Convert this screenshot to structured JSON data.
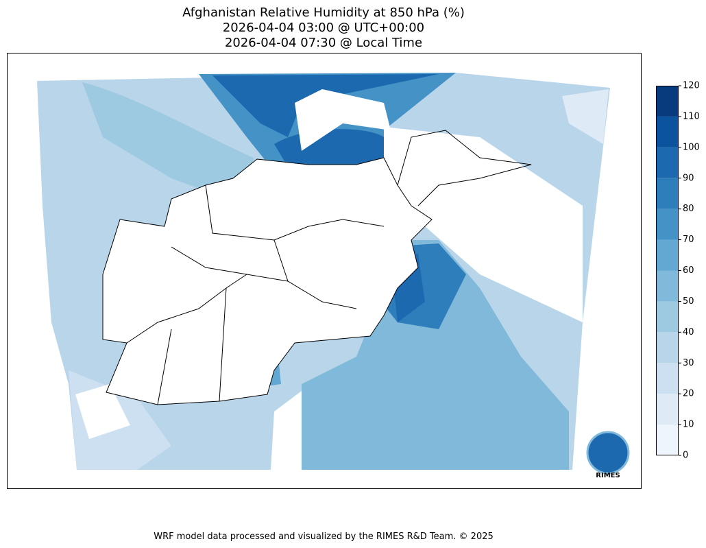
{
  "header": {
    "title_lines": [
      "Afghanistan Relative Humidity at 850 hPa (%)",
      "2026-04-04 03:00 @ UTC+00:00",
      "2026-04-04 07:30 @ Local Time"
    ]
  },
  "colorbar": {
    "ticks": [
      0,
      10,
      20,
      30,
      40,
      50,
      60,
      70,
      80,
      90,
      100,
      110,
      120
    ],
    "colors": [
      "#eff5fc",
      "#deebf7",
      "#cde0f1",
      "#b8d5ea",
      "#9dcae1",
      "#80b9da",
      "#62a8d3",
      "#4592c7",
      "#2f7ebc",
      "#1c69af",
      "#0b539c",
      "#083b7d"
    ]
  },
  "logo": {
    "text": "RIMES"
  },
  "footer": {
    "credit": "WRF model data processed and visualized by the RIMES R&D Team. © 2025"
  }
}
